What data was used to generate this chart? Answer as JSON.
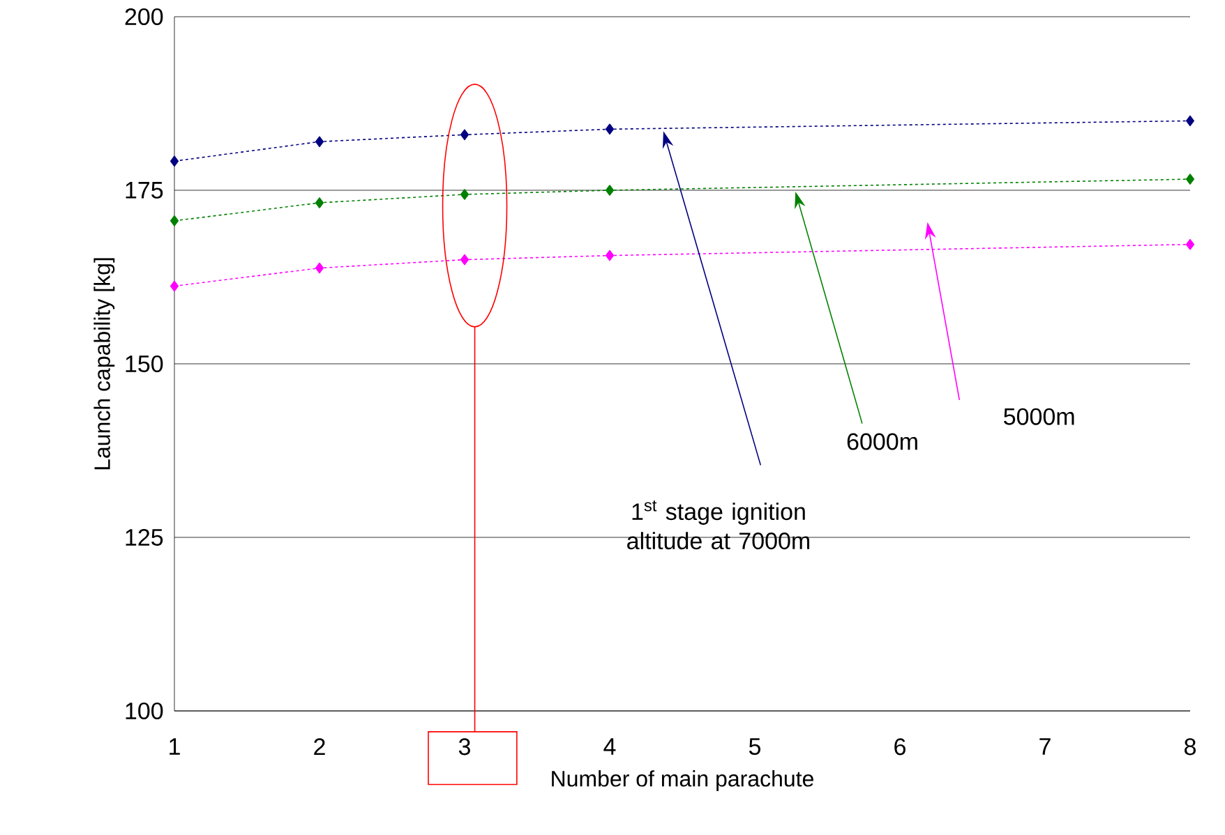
{
  "chart_data": {
    "type": "line",
    "xlabel": "Number of main parachute",
    "ylabel": "Launch capability [kg]",
    "categories": [
      "1",
      "2",
      "3",
      "4",
      "5",
      "6",
      "7",
      "8"
    ],
    "series": [
      {
        "color": "#000080",
        "values": [
          179.2,
          182,
          183,
          183.8,
          null,
          null,
          null,
          185
        ]
      },
      {
        "color": "#008000",
        "values": [
          170.6,
          173.2,
          174.4,
          175,
          null,
          null,
          null,
          176.6
        ]
      },
      {
        "color": "#ff00ff",
        "values": [
          161.2,
          163.8,
          165,
          165.6,
          null,
          null,
          null,
          167.2
        ]
      }
    ],
    "ylim": [
      100,
      200
    ],
    "yticks": [
      100,
      125,
      150,
      175,
      200
    ],
    "grid": "y",
    "marker": "diamond",
    "line_style": "dashed",
    "ref_lines": [
      {
        "axis": "x",
        "value": "3",
        "color": "#ff0000"
      }
    ],
    "annotations": [
      "1$^{st}$ stage ignition altitude at 7000m",
      "6000m",
      "5000m"
    ]
  }
}
